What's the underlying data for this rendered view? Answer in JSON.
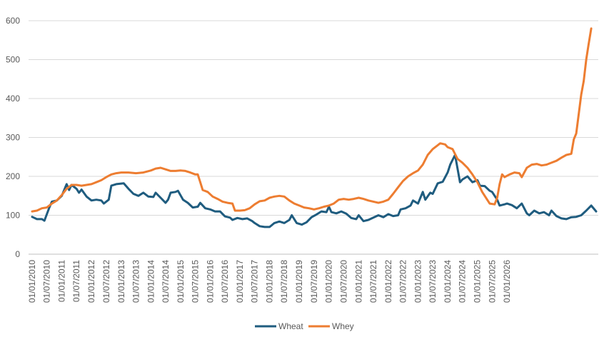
{
  "chart_data": {
    "type": "line",
    "title": "",
    "xlabel": "",
    "ylabel": "",
    "ylim": [
      0,
      600
    ],
    "yticks": [
      0,
      100,
      200,
      300,
      400,
      500,
      600
    ],
    "xticks": [
      "01/01/2010",
      "01/07/2010",
      "01/01/2011",
      "01/07/2011",
      "01/01/2012",
      "01/07/2012",
      "01/01/2013",
      "01/07/2013",
      "01/01/2014",
      "01/07/2014",
      "01/01/2015",
      "01/07/2015",
      "01/01/2016",
      "01/07/2016",
      "01/01/2017",
      "01/07/2017",
      "01/01/2018",
      "01/07/2018",
      "01/01/2019",
      "01/07/2019",
      "01/01/2020",
      "01/07/2020",
      "01/01/2021",
      "01/07/2021",
      "01/01/2022",
      "01/07/2022",
      "01/01/2023",
      "01/07/2023",
      "01/01/2024",
      "01/07/2024",
      "01/01/2025",
      "01/07/2025",
      "01/01/2026"
    ],
    "grid": true,
    "legend_position": "bottom",
    "series": [
      {
        "name": "Wheat",
        "color": "#1f5c7f",
        "points": [
          [
            "2010-01-01",
            96
          ],
          [
            "2010-03-01",
            90
          ],
          [
            "2010-05-01",
            90
          ],
          [
            "2010-06-01",
            86
          ],
          [
            "2010-08-01",
            120
          ],
          [
            "2010-09-01",
            135
          ],
          [
            "2010-11-01",
            138
          ],
          [
            "2011-01-01",
            150
          ],
          [
            "2011-03-01",
            180
          ],
          [
            "2011-04-01",
            165
          ],
          [
            "2011-05-01",
            178
          ],
          [
            "2011-07-01",
            168
          ],
          [
            "2011-08-01",
            158
          ],
          [
            "2011-09-01",
            166
          ],
          [
            "2011-11-01",
            148
          ],
          [
            "2012-01-01",
            138
          ],
          [
            "2012-03-01",
            140
          ],
          [
            "2012-05-01",
            138
          ],
          [
            "2012-06-01",
            130
          ],
          [
            "2012-08-01",
            140
          ],
          [
            "2012-09-01",
            176
          ],
          [
            "2012-11-01",
            180
          ],
          [
            "2013-02-01",
            182
          ],
          [
            "2013-04-01",
            168
          ],
          [
            "2013-06-01",
            155
          ],
          [
            "2013-08-01",
            150
          ],
          [
            "2013-10-01",
            158
          ],
          [
            "2013-12-01",
            148
          ],
          [
            "2014-02-01",
            147
          ],
          [
            "2014-03-01",
            158
          ],
          [
            "2014-05-01",
            145
          ],
          [
            "2014-07-01",
            132
          ],
          [
            "2014-08-01",
            140
          ],
          [
            "2014-09-01",
            158
          ],
          [
            "2014-11-01",
            160
          ],
          [
            "2014-12-01",
            163
          ],
          [
            "2015-02-01",
            140
          ],
          [
            "2015-04-01",
            132
          ],
          [
            "2015-06-01",
            120
          ],
          [
            "2015-08-01",
            122
          ],
          [
            "2015-09-01",
            132
          ],
          [
            "2015-11-01",
            118
          ],
          [
            "2016-01-01",
            115
          ],
          [
            "2016-03-01",
            110
          ],
          [
            "2016-05-01",
            110
          ],
          [
            "2016-07-01",
            97
          ],
          [
            "2016-09-01",
            94
          ],
          [
            "2016-10-01",
            88
          ],
          [
            "2016-12-01",
            93
          ],
          [
            "2017-02-01",
            90
          ],
          [
            "2017-04-01",
            92
          ],
          [
            "2017-06-01",
            85
          ],
          [
            "2017-07-01",
            80
          ],
          [
            "2017-09-01",
            72
          ],
          [
            "2017-11-01",
            70
          ],
          [
            "2018-01-01",
            70
          ],
          [
            "2018-03-01",
            80
          ],
          [
            "2018-05-01",
            84
          ],
          [
            "2018-07-01",
            80
          ],
          [
            "2018-09-01",
            88
          ],
          [
            "2018-10-01",
            100
          ],
          [
            "2018-12-01",
            80
          ],
          [
            "2019-02-01",
            76
          ],
          [
            "2019-04-01",
            82
          ],
          [
            "2019-06-01",
            95
          ],
          [
            "2019-08-01",
            102
          ],
          [
            "2019-10-01",
            110
          ],
          [
            "2019-12-01",
            108
          ],
          [
            "2020-01-01",
            122
          ],
          [
            "2020-02-01",
            108
          ],
          [
            "2020-04-01",
            105
          ],
          [
            "2020-06-01",
            110
          ],
          [
            "2020-08-01",
            104
          ],
          [
            "2020-10-01",
            93
          ],
          [
            "2020-12-01",
            90
          ],
          [
            "2021-01-01",
            100
          ],
          [
            "2021-03-01",
            85
          ],
          [
            "2021-05-01",
            88
          ],
          [
            "2021-07-01",
            94
          ],
          [
            "2021-09-01",
            100
          ],
          [
            "2021-11-01",
            95
          ],
          [
            "2022-01-01",
            103
          ],
          [
            "2022-03-01",
            98
          ],
          [
            "2022-05-01",
            100
          ],
          [
            "2022-06-01",
            115
          ],
          [
            "2022-08-01",
            118
          ],
          [
            "2022-10-01",
            125
          ],
          [
            "2022-11-01",
            138
          ],
          [
            "2023-01-01",
            130
          ],
          [
            "2023-03-01",
            160
          ],
          [
            "2023-04-01",
            140
          ],
          [
            "2023-06-01",
            158
          ],
          [
            "2023-07-01",
            155
          ],
          [
            "2023-09-01",
            182
          ],
          [
            "2023-11-01",
            186
          ],
          [
            "2024-01-01",
            210
          ],
          [
            "2024-02-01",
            230
          ],
          [
            "2024-04-01",
            255
          ],
          [
            "2024-06-01",
            185
          ],
          [
            "2024-07-01",
            192
          ],
          [
            "2024-09-01",
            200
          ],
          [
            "2024-11-01",
            185
          ],
          [
            "2025-01-01",
            190
          ],
          [
            "2025-02-01",
            176
          ],
          [
            "2025-04-01",
            175
          ],
          [
            "2025-06-01",
            163
          ],
          [
            "2025-07-01",
            160
          ],
          [
            "2025-09-01",
            140
          ],
          [
            "2025-10-01",
            125
          ],
          [
            "2025-12-01",
            128
          ],
          [
            "2026-01-01",
            130
          ],
          [
            "2026-03-01",
            126
          ],
          [
            "2026-05-01",
            118
          ],
          [
            "2026-07-01",
            130
          ],
          [
            "2026-09-01",
            105
          ],
          [
            "2026-10-01",
            100
          ],
          [
            "2026-12-01",
            112
          ],
          [
            "2027-02-01",
            105
          ],
          [
            "2027-04-01",
            108
          ],
          [
            "2027-06-01",
            100
          ],
          [
            "2027-07-01",
            112
          ],
          [
            "2027-09-01",
            98
          ],
          [
            "2027-11-01",
            92
          ],
          [
            "2028-01-01",
            90
          ],
          [
            "2028-03-01",
            95
          ],
          [
            "2028-05-01",
            96
          ],
          [
            "2028-07-01",
            100
          ],
          [
            "2028-09-01",
            112
          ],
          [
            "2028-11-01",
            125
          ],
          [
            "2029-01-01",
            110
          ]
        ]
      },
      {
        "name": "Whey",
        "color": "#ed7d31",
        "points": [
          [
            "2010-01-01",
            110
          ],
          [
            "2010-03-01",
            112
          ],
          [
            "2010-05-01",
            118
          ],
          [
            "2010-07-01",
            120
          ],
          [
            "2010-09-01",
            130
          ],
          [
            "2010-11-01",
            138
          ],
          [
            "2011-01-01",
            152
          ],
          [
            "2011-03-01",
            168
          ],
          [
            "2011-05-01",
            178
          ],
          [
            "2011-07-01",
            178
          ],
          [
            "2011-09-01",
            176
          ],
          [
            "2011-11-01",
            178
          ],
          [
            "2012-01-01",
            180
          ],
          [
            "2012-03-01",
            185
          ],
          [
            "2012-05-01",
            190
          ],
          [
            "2012-07-01",
            198
          ],
          [
            "2012-09-01",
            205
          ],
          [
            "2012-11-01",
            208
          ],
          [
            "2013-01-01",
            210
          ],
          [
            "2013-04-01",
            210
          ],
          [
            "2013-07-01",
            208
          ],
          [
            "2013-10-01",
            210
          ],
          [
            "2014-01-01",
            215
          ],
          [
            "2014-03-01",
            220
          ],
          [
            "2014-05-01",
            222
          ],
          [
            "2014-07-01",
            218
          ],
          [
            "2014-09-01",
            214
          ],
          [
            "2014-11-01",
            214
          ],
          [
            "2015-01-01",
            215
          ],
          [
            "2015-03-01",
            214
          ],
          [
            "2015-05-01",
            210
          ],
          [
            "2015-07-01",
            205
          ],
          [
            "2015-08-01",
            205
          ],
          [
            "2015-09-01",
            185
          ],
          [
            "2015-10-01",
            165
          ],
          [
            "2015-12-01",
            160
          ],
          [
            "2016-02-01",
            148
          ],
          [
            "2016-04-01",
            142
          ],
          [
            "2016-06-01",
            135
          ],
          [
            "2016-08-01",
            132
          ],
          [
            "2016-10-01",
            130
          ],
          [
            "2016-11-01",
            112
          ],
          [
            "2017-01-01",
            112
          ],
          [
            "2017-03-01",
            113
          ],
          [
            "2017-05-01",
            118
          ],
          [
            "2017-07-01",
            128
          ],
          [
            "2017-09-01",
            136
          ],
          [
            "2017-11-01",
            138
          ],
          [
            "2018-01-01",
            145
          ],
          [
            "2018-03-01",
            148
          ],
          [
            "2018-05-01",
            150
          ],
          [
            "2018-07-01",
            148
          ],
          [
            "2018-09-01",
            138
          ],
          [
            "2018-11-01",
            130
          ],
          [
            "2019-01-01",
            125
          ],
          [
            "2019-03-01",
            120
          ],
          [
            "2019-05-01",
            118
          ],
          [
            "2019-07-01",
            115
          ],
          [
            "2019-09-01",
            118
          ],
          [
            "2019-11-01",
            122
          ],
          [
            "2020-01-01",
            125
          ],
          [
            "2020-03-01",
            130
          ],
          [
            "2020-05-01",
            140
          ],
          [
            "2020-07-01",
            142
          ],
          [
            "2020-09-01",
            140
          ],
          [
            "2020-11-01",
            142
          ],
          [
            "2021-01-01",
            145
          ],
          [
            "2021-03-01",
            142
          ],
          [
            "2021-05-01",
            138
          ],
          [
            "2021-07-01",
            135
          ],
          [
            "2021-09-01",
            132
          ],
          [
            "2021-11-01",
            135
          ],
          [
            "2022-01-01",
            140
          ],
          [
            "2022-03-01",
            155
          ],
          [
            "2022-05-01",
            172
          ],
          [
            "2022-07-01",
            188
          ],
          [
            "2022-09-01",
            200
          ],
          [
            "2022-11-01",
            208
          ],
          [
            "2023-01-01",
            215
          ],
          [
            "2023-03-01",
            230
          ],
          [
            "2023-05-01",
            255
          ],
          [
            "2023-07-01",
            270
          ],
          [
            "2023-09-01",
            280
          ],
          [
            "2023-10-01",
            285
          ],
          [
            "2023-12-01",
            282
          ],
          [
            "2024-01-01",
            275
          ],
          [
            "2024-03-01",
            270
          ],
          [
            "2024-05-01",
            245
          ],
          [
            "2024-07-01",
            235
          ],
          [
            "2024-09-01",
            222
          ],
          [
            "2024-11-01",
            205
          ],
          [
            "2025-01-01",
            185
          ],
          [
            "2025-03-01",
            160
          ],
          [
            "2025-05-01",
            140
          ],
          [
            "2025-06-01",
            130
          ],
          [
            "2025-08-01",
            128
          ],
          [
            "2025-09-01",
            145
          ],
          [
            "2025-10-01",
            180
          ],
          [
            "2025-11-01",
            205
          ],
          [
            "2025-12-01",
            198
          ],
          [
            "2026-02-01",
            205
          ],
          [
            "2026-04-01",
            210
          ],
          [
            "2026-06-01",
            208
          ],
          [
            "2026-07-01",
            198
          ],
          [
            "2026-09-01",
            222
          ],
          [
            "2026-11-01",
            230
          ],
          [
            "2027-01-01",
            232
          ],
          [
            "2027-03-01",
            228
          ],
          [
            "2027-05-01",
            230
          ],
          [
            "2027-07-01",
            235
          ],
          [
            "2027-09-01",
            240
          ],
          [
            "2027-11-01",
            248
          ],
          [
            "2028-01-01",
            255
          ],
          [
            "2028-03-01",
            258
          ],
          [
            "2028-04-01",
            295
          ],
          [
            "2028-05-01",
            310
          ],
          [
            "2028-06-01",
            360
          ],
          [
            "2028-07-01",
            410
          ],
          [
            "2028-08-01",
            445
          ],
          [
            "2028-09-01",
            500
          ],
          [
            "2028-10-01",
            540
          ],
          [
            "2028-11-01",
            580
          ]
        ]
      }
    ]
  }
}
